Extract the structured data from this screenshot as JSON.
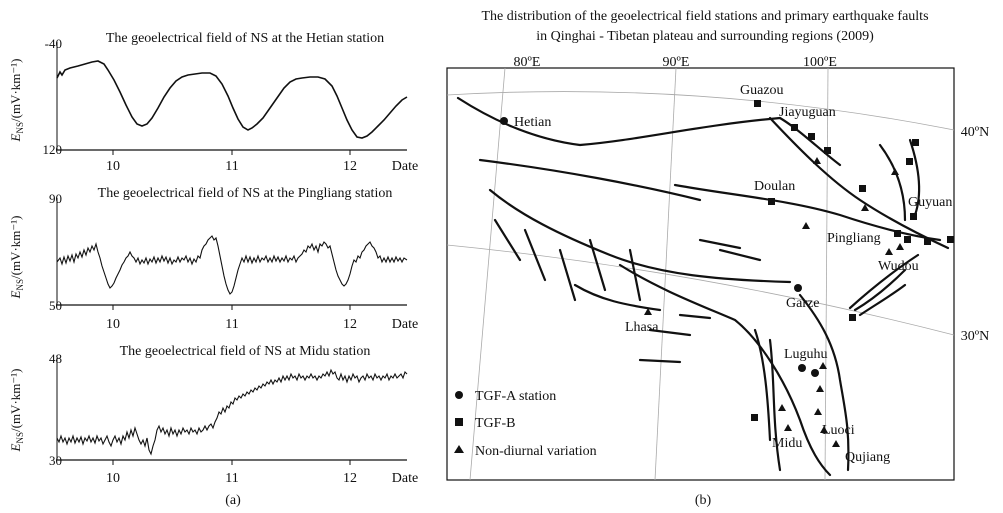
{
  "panel_a": {
    "caption": "(a)",
    "x_ticks": [
      "10",
      "11",
      "12",
      "Date"
    ],
    "charts": [
      {
        "title": "The geoelectrical field of NS at the Hetian station",
        "ylabel_main": "E",
        "ylabel_sub": "NS",
        "ylabel_unit": "/(mV·km⁻¹)",
        "y_ticks": [
          "-40",
          "120"
        ]
      },
      {
        "title": "The geoelectrical field of NS at the Pingliang station",
        "ylabel_main": "E",
        "ylabel_sub": "NS",
        "ylabel_unit": "/(mV·km⁻¹)",
        "y_ticks": [
          "90",
          "50"
        ]
      },
      {
        "title": "The geoelectrical field of NS at Midu station",
        "ylabel_main": "E",
        "ylabel_sub": "NS",
        "ylabel_unit": "/(mV·km⁻¹)",
        "y_ticks": [
          "48",
          "30"
        ]
      }
    ]
  },
  "panel_b": {
    "caption": "(b)",
    "title_line1": "The distribution of the geoelectrical field stations and primary earthquake faults",
    "title_line2": "in Qinghai - Tibetan plateau and surrounding regions (2009)",
    "lon_labels": [
      "80ºE",
      "90ºE",
      "100ºE"
    ],
    "lat_labels": [
      "40ºN",
      "30ºN"
    ],
    "stations": {
      "hetian": "Hetian",
      "guazou": "Guazou",
      "jiayuguan": "Jiayuguan",
      "doulan": "Doulan",
      "guyuan": "Guyuan",
      "pingliang": "Pingliang",
      "wudou": "Wudou",
      "garze": "Garze",
      "lhasa": "Lhasa",
      "luguhu": "Luguhu",
      "luoci": "Luoci",
      "midu": "Midu",
      "qujiang": "Qujiang"
    },
    "legend": {
      "tgf_a": "TGF-A station",
      "tgf_b": "TGF-B",
      "non_diurnal": "Non-diurnal variation"
    }
  }
}
